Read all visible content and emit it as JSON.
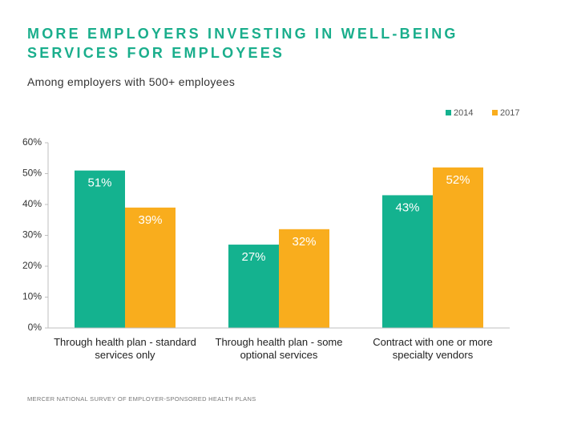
{
  "chart_data": {
    "type": "bar",
    "title": "MORE EMPLOYERS INVESTING IN WELL-BEING SERVICES FOR EMPLOYEES",
    "subtitle": "Among employers with 500+ employees",
    "source": "MERCER NATIONAL SURVEY OF EMPLOYER-SPONSORED HEALTH PLANS",
    "categories": [
      "Through health plan - standard services only",
      "Through health plan - some optional services",
      "Contract with one or more specialty vendors"
    ],
    "series": [
      {
        "name": "2014",
        "color": "#14b28f",
        "values": [
          51,
          27,
          43
        ],
        "value_labels": [
          "51%",
          "27%",
          "43%"
        ]
      },
      {
        "name": "2017",
        "color": "#f9ad1d",
        "values": [
          39,
          32,
          52
        ],
        "value_labels": [
          "39%",
          "32%",
          "52%"
        ]
      }
    ],
    "ylim": [
      0,
      60
    ],
    "yticks": [
      {
        "value": 0,
        "label": "0%"
      },
      {
        "value": 10,
        "label": "10%"
      },
      {
        "value": 20,
        "label": "20%"
      },
      {
        "value": 30,
        "label": "30%"
      },
      {
        "value": 40,
        "label": "40%"
      },
      {
        "value": 50,
        "label": "50%"
      },
      {
        "value": 60,
        "label": "60%"
      }
    ],
    "grid": false,
    "legend": "top-right"
  }
}
